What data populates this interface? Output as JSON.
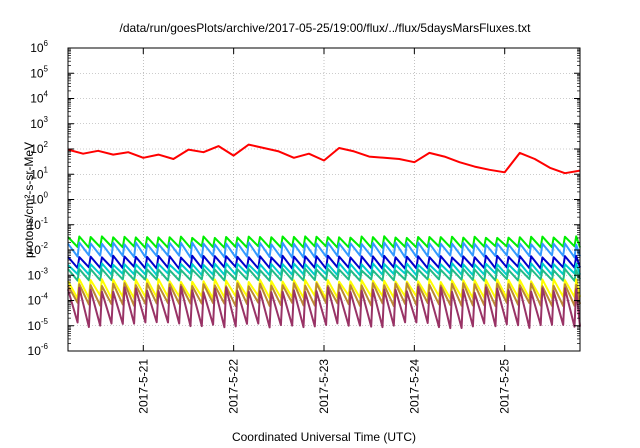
{
  "chart_data": {
    "type": "line",
    "title": "/data/run/goesPlots/archive/2017-05-25/19:00/flux/../flux/5daysMarsFluxes.txt",
    "xlabel": "Coordinated Universal Time (UTC)",
    "ylabel": "protons/cm²-s-sr-MeV",
    "yscale": "log",
    "ylim": [
      1e-06,
      1000000.0
    ],
    "xlim": [
      "2017-05-20 04:00",
      "2017-05-25 20:00"
    ],
    "y_ticks": [
      {
        "base": "10",
        "exp": "-6"
      },
      {
        "base": "10",
        "exp": "-5"
      },
      {
        "base": "10",
        "exp": "-4"
      },
      {
        "base": "10",
        "exp": "-3"
      },
      {
        "base": "10",
        "exp": "-2"
      },
      {
        "base": "10",
        "exp": "-1"
      },
      {
        "base": "10",
        "exp": "0"
      },
      {
        "base": "10",
        "exp": "1"
      },
      {
        "base": "10",
        "exp": "2"
      },
      {
        "base": "10",
        "exp": "3"
      },
      {
        "base": "10",
        "exp": "4"
      },
      {
        "base": "10",
        "exp": "5"
      },
      {
        "base": "10",
        "exp": "6"
      }
    ],
    "x_ticks": [
      "2017-5-21",
      "2017-5-22",
      "2017-5-23",
      "2017-5-24",
      "2017-5-25"
    ],
    "grid": true,
    "legend": "none",
    "series": [
      {
        "color": "#ff0000",
        "values": [
          [
            "2017-05-20 04:00",
            95
          ],
          [
            "2017-05-20 08:00",
            65
          ],
          [
            "2017-05-20 12:00",
            85
          ],
          [
            "2017-05-20 16:00",
            60
          ],
          [
            "2017-05-20 20:00",
            75
          ],
          [
            "2017-05-21 00:00",
            45
          ],
          [
            "2017-05-21 04:00",
            60
          ],
          [
            "2017-05-21 08:00",
            40
          ],
          [
            "2017-05-21 12:00",
            95
          ],
          [
            "2017-05-21 16:00",
            75
          ],
          [
            "2017-05-21 20:00",
            130
          ],
          [
            "2017-05-22 00:00",
            55
          ],
          [
            "2017-05-22 04:00",
            150
          ],
          [
            "2017-05-22 08:00",
            110
          ],
          [
            "2017-05-22 12:00",
            80
          ],
          [
            "2017-05-22 16:00",
            45
          ],
          [
            "2017-05-22 20:00",
            65
          ],
          [
            "2017-05-23 00:00",
            35
          ],
          [
            "2017-05-23 04:00",
            110
          ],
          [
            "2017-05-23 08:00",
            80
          ],
          [
            "2017-05-23 12:00",
            50
          ],
          [
            "2017-05-23 16:00",
            45
          ],
          [
            "2017-05-23 20:00",
            40
          ],
          [
            "2017-05-24 00:00",
            30
          ],
          [
            "2017-05-24 04:00",
            70
          ],
          [
            "2017-05-24 08:00",
            50
          ],
          [
            "2017-05-24 12:00",
            30
          ],
          [
            "2017-05-24 16:00",
            20
          ],
          [
            "2017-05-24 20:00",
            15
          ],
          [
            "2017-05-25 00:00",
            12
          ],
          [
            "2017-05-25 04:00",
            70
          ],
          [
            "2017-05-25 08:00",
            40
          ],
          [
            "2017-05-25 12:00",
            18
          ],
          [
            "2017-05-25 16:00",
            11
          ],
          [
            "2017-05-25 20:00",
            14
          ]
        ]
      },
      {
        "color": "#00ee00",
        "low": 0.012,
        "high": 0.035
      },
      {
        "color": "#3399ff",
        "low": 0.005,
        "high": 0.02
      },
      {
        "color": "#0000cc",
        "low": 0.0018,
        "high": 0.006
      },
      {
        "color": "#00cccc",
        "low": 0.001,
        "high": 0.003
      },
      {
        "color": "#22bb88",
        "low": 0.0006,
        "high": 0.0018
      },
      {
        "color": "#ffff00",
        "low": 0.00012,
        "high": 0.0007
      },
      {
        "color": "#bb8833",
        "low": 6e-05,
        "high": 0.0005
      },
      {
        "color": "#993366",
        "low": 8e-06,
        "high": 0.00035
      }
    ]
  }
}
